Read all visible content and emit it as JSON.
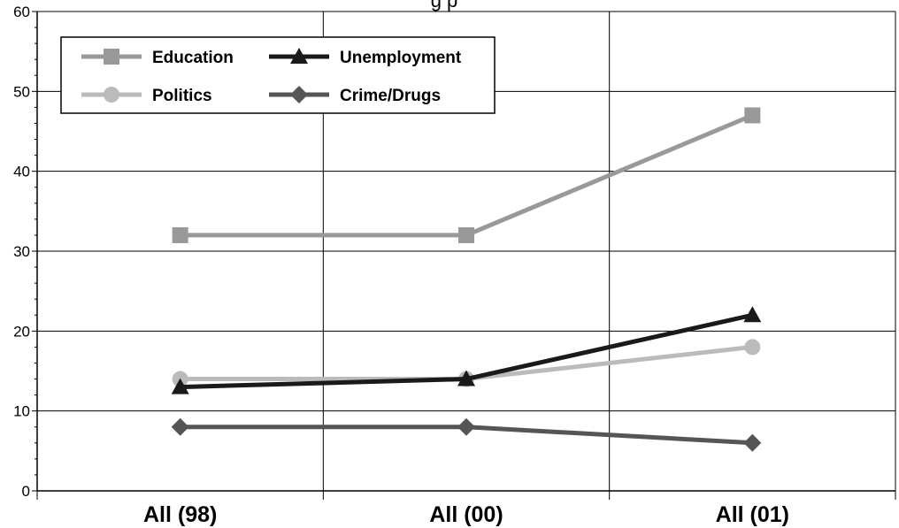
{
  "chart_data": {
    "type": "line",
    "title_fragment": "g        p",
    "categories": [
      "All (98)",
      "All (00)",
      "All (01)"
    ],
    "ylim": [
      0,
      60
    ],
    "yticks": [
      0,
      10,
      20,
      30,
      40,
      50,
      60
    ],
    "grid": true,
    "legend_position": "top-left",
    "series": [
      {
        "name": "Education",
        "values": [
          32,
          32,
          47
        ],
        "color": "#999999",
        "marker": "square"
      },
      {
        "name": "Unemployment",
        "values": [
          13,
          14,
          22
        ],
        "color": "#1a1a1a",
        "marker": "triangle"
      },
      {
        "name": "Politics",
        "values": [
          14,
          14,
          18
        ],
        "color": "#bbbbbb",
        "marker": "circle"
      },
      {
        "name": "Crime/Drugs",
        "values": [
          8,
          8,
          6
        ],
        "color": "#555555",
        "marker": "diamond"
      }
    ]
  }
}
